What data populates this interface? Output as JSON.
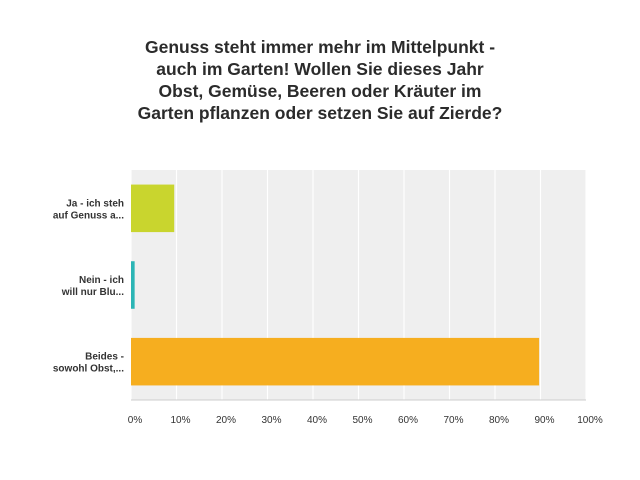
{
  "chart_data": {
    "type": "bar",
    "orientation": "horizontal",
    "title": "Genuss steht immer mehr im Mittelpunkt - auch im Garten! Wollen Sie dieses Jahr Obst, Gemüse, Beeren oder Kräuter  im Garten pflanzen oder setzen Sie auf Zierde?",
    "title_lines": [
      "Genuss steht immer mehr im Mittelpunkt -",
      "auch im Garten! Wollen Sie dieses Jahr",
      "Obst, Gemüse, Beeren oder Kräuter  im",
      "Garten pflanzen oder setzen Sie auf Zierde?"
    ],
    "categories": [
      {
        "lines": [
          "Ja - ich steh",
          "auf Genuss a..."
        ],
        "value": 9.5,
        "color": "#c9d52e"
      },
      {
        "lines": [
          "Nein - ich",
          "will nur Blu..."
        ],
        "value": 0.8,
        "color": "#2bb5b5"
      },
      {
        "lines": [
          "Beides -",
          "sowohl Obst,..."
        ],
        "value": 89.7,
        "color": "#f6ae1f"
      }
    ],
    "xlim": [
      0,
      100
    ],
    "xticks": [
      "0%",
      "10%",
      "20%",
      "30%",
      "40%",
      "50%",
      "60%",
      "70%",
      "80%",
      "90%",
      "100%"
    ],
    "grid": true,
    "plot_background": "#efefef",
    "grid_color": "#ffffff"
  }
}
